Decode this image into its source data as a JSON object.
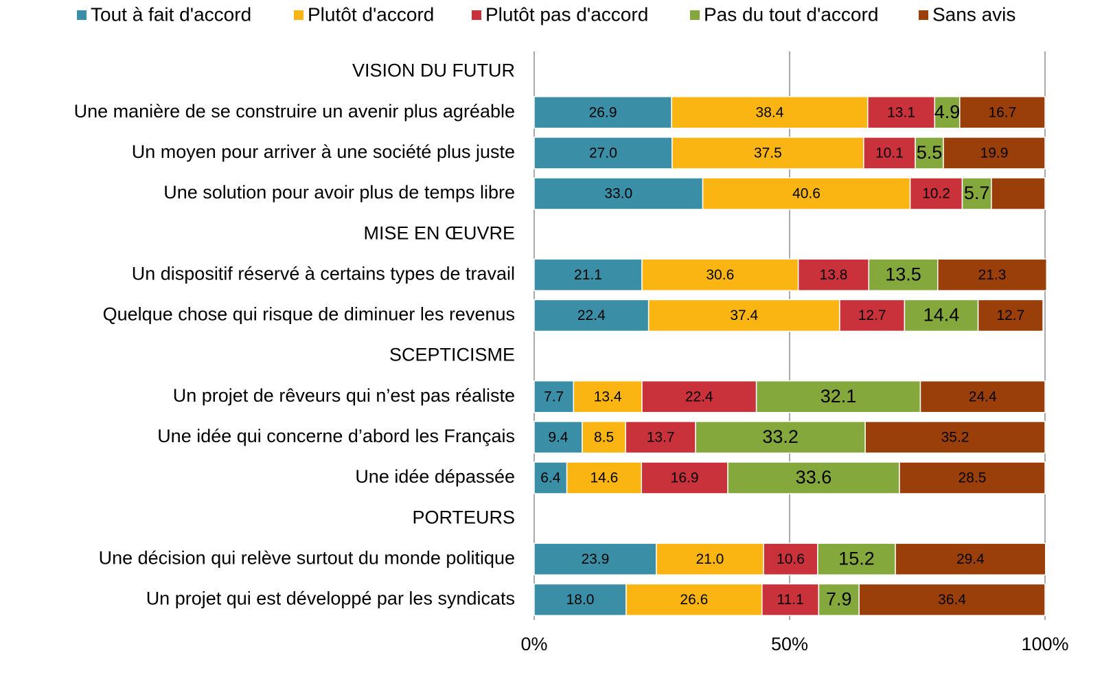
{
  "chart_data": {
    "type": "stacked_barh",
    "categories": [
      "VISION DU FUTUR",
      "Une manière de se construire un avenir plus agréable",
      "Un moyen pour arriver à une société plus juste",
      "Une solution pour avoir plus de temps libre",
      "MISE EN ŒUVRE",
      "Un dispositif réservé à certains types de travail",
      "Quelque chose qui risque de diminuer les revenus",
      "SCEPTICISME",
      "Un projet de rêveurs qui n’est pas réaliste",
      "Une idée qui concerne d’abord les Français",
      "Une idée dépassée",
      "PORTEURS",
      "Une décision qui relève surtout du monde politique",
      "Un projet qui est développé par les syndicats"
    ],
    "series": [
      {
        "name": "Tout à fait d'accord",
        "color": "#3a8fa7",
        "values": [
          null,
          26.9,
          27.0,
          33.0,
          null,
          21.1,
          22.4,
          null,
          7.7,
          9.4,
          6.4,
          null,
          23.9,
          18.0
        ],
        "value_labels": [
          null,
          "26.9",
          "27.0",
          "33.0",
          null,
          "21.1",
          "22.4",
          null,
          "7.7",
          "9.4",
          "6.4",
          null,
          "23.9",
          "18.0"
        ]
      },
      {
        "name": "Plutôt d'accord",
        "color": "#fbb513",
        "values": [
          null,
          38.4,
          37.5,
          40.6,
          null,
          30.6,
          37.4,
          null,
          13.4,
          8.5,
          14.6,
          null,
          21.0,
          26.6
        ],
        "value_labels": [
          null,
          "38.4",
          "37.5",
          "40.6",
          null,
          "30.6",
          "37.4",
          null,
          "13.4",
          "8.5",
          "14.6",
          null,
          "21.0",
          "26.6"
        ]
      },
      {
        "name": "Plutôt pas d'accord",
        "color": "#c9313b",
        "values": [
          null,
          13.1,
          10.1,
          10.2,
          null,
          13.8,
          12.7,
          null,
          22.4,
          13.7,
          16.9,
          null,
          10.6,
          11.1
        ],
        "value_labels": [
          null,
          "13.1",
          "10.1",
          "10.2",
          null,
          "13.8",
          "12.7",
          null,
          "22.4",
          "13.7",
          "16.9",
          null,
          "10.6",
          "11.1"
        ]
      },
      {
        "name": "Pas du tout d'accord",
        "color": "#84a83b",
        "values": [
          null,
          4.9,
          5.5,
          5.7,
          null,
          13.5,
          14.4,
          null,
          32.1,
          33.2,
          33.6,
          null,
          15.2,
          7.9
        ],
        "value_labels": [
          null,
          "4.9",
          "5.5",
          "5.7",
          null,
          "13.5",
          "14.4",
          null,
          "32.1",
          "33.2",
          "33.6",
          null,
          "15.2",
          "7.9"
        ]
      },
      {
        "name": "Sans avis",
        "color": "#9a3f0a",
        "values": [
          null,
          16.7,
          19.9,
          10.5,
          null,
          21.3,
          12.7,
          null,
          24.4,
          35.2,
          28.5,
          null,
          29.4,
          36.4
        ],
        "value_labels": [
          null,
          "16.7",
          "19.9",
          null,
          null,
          "21.3",
          "12.7",
          null,
          "24.4",
          "35.2",
          "28.5",
          null,
          "29.4",
          "36.4"
        ]
      }
    ],
    "xlim": [
      0,
      100
    ],
    "xticks": [
      {
        "value": 0,
        "label": "0%"
      },
      {
        "value": 50,
        "label": "50%"
      },
      {
        "value": 100,
        "label": "100%"
      }
    ],
    "grid": true,
    "legend": "top"
  }
}
